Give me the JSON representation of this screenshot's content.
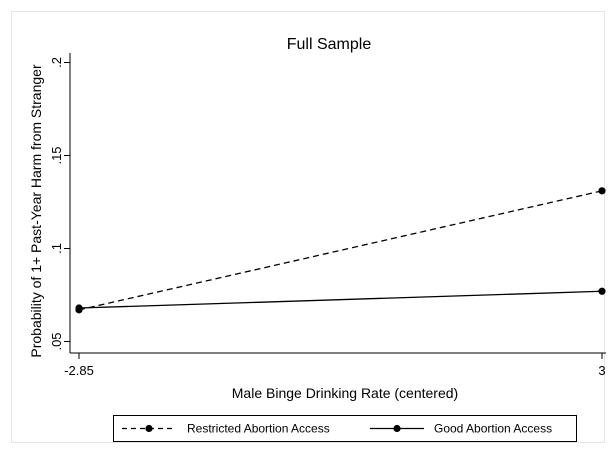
{
  "chart_data": {
    "type": "line",
    "title": "Full Sample",
    "xlabel": "Male Binge Drinking Rate (centered)",
    "ylabel": "Probability of 1+ Past-Year Harm from Stranger",
    "xlim": [
      -2.85,
      3
    ],
    "ylim": [
      0.05,
      0.2
    ],
    "x": [
      -2.85,
      3
    ],
    "x_tick_labels": [
      "-2.85",
      "3"
    ],
    "y_ticks": [
      0.05,
      0.1,
      0.15,
      0.2
    ],
    "y_tick_labels": [
      ".05",
      ".1",
      ".15",
      ".2"
    ],
    "grid": false,
    "legend_position": "bottom",
    "series": [
      {
        "name": "Restricted Abortion Access",
        "values": [
          0.067,
          0.131
        ],
        "line_style": "dashed",
        "marker": "circle",
        "color": "#000000"
      },
      {
        "name": "Good Abortion Access",
        "values": [
          0.068,
          0.077
        ],
        "line_style": "solid",
        "marker": "circle",
        "color": "#000000"
      }
    ]
  }
}
